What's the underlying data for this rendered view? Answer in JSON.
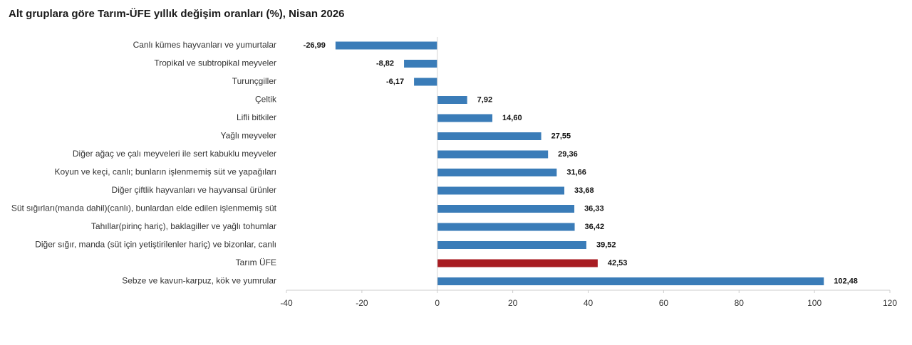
{
  "chart_data": {
    "type": "bar",
    "orientation": "horizontal",
    "title": "Alt gruplara göre Tarım-ÜFE yıllık değişim oranları (%), Nisan 2026",
    "xlabel": "",
    "ylabel": "",
    "xlim": [
      -40,
      120
    ],
    "xticks": [
      -40,
      -20,
      0,
      20,
      40,
      60,
      80,
      100,
      120
    ],
    "xtick_labels": [
      "-40",
      "-20",
      "0",
      "20",
      "40",
      "60",
      "80",
      "100",
      "120"
    ],
    "grid": false,
    "legend": "none",
    "colors": {
      "default": "#3a7cb8",
      "highlight": "#a81c22"
    },
    "highlight_category": "Tarım ÜFE",
    "categories": [
      "Canlı kümes hayvanları ve yumurtalar",
      "Tropikal ve subtropikal meyveler",
      "Turunçgiller",
      "Çeltik",
      "Lifli bitkiler",
      "Yağlı meyveler",
      "Diğer ağaç ve çalı meyveleri ile sert kabuklu meyveler",
      "Koyun ve keçi, canlı; bunların işlenmemiş süt ve yapağıları",
      "Diğer çiftlik hayvanları ve hayvansal ürünler",
      "Süt sığırları(manda dahil)(canlı), bunlardan elde edilen işlenmemiş süt",
      "Tahıllar(pirinç hariç), baklagiller ve yağlı tohumlar",
      "Diğer sığır, manda (süt için yetiştirilenler hariç) ve bizonlar, canlı",
      "Tarım ÜFE",
      "Sebze ve kavun-karpuz, kök ve yumrular"
    ],
    "values": [
      -26.99,
      -8.82,
      -6.17,
      7.92,
      14.6,
      27.55,
      29.36,
      31.66,
      33.68,
      36.33,
      36.42,
      39.52,
      42.53,
      102.48
    ],
    "value_labels": [
      "-26,99",
      "-8,82",
      "-6,17",
      "7,92",
      "14,60",
      "27,55",
      "29,36",
      "31,66",
      "33,68",
      "36,33",
      "36,42",
      "39,52",
      "42,53",
      "102,48"
    ]
  }
}
